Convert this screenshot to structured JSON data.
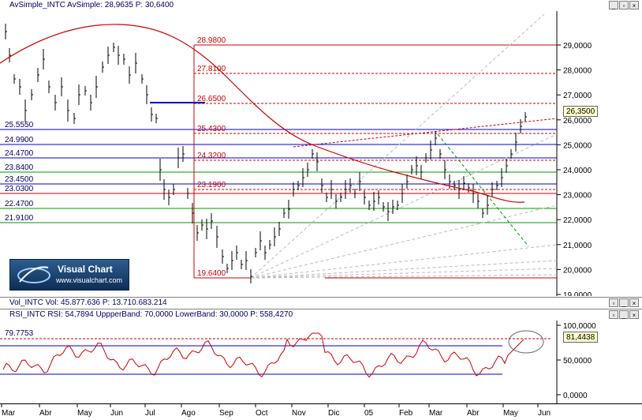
{
  "price_pane": {
    "title": "AvSimple_INTC  AvSimple: 28,9635  P: 30,6400",
    "current_value": "26,3500",
    "y_ticks": [
      "29,0000",
      "28,0000",
      "27,0000",
      "26,0000",
      "25,0000",
      "24,0000",
      "23,0000",
      "22,0000",
      "21,0000",
      "20,0000",
      "19,0000"
    ],
    "levels_left": [
      "25.5550",
      "24.9900",
      "24.4700",
      "23.8400",
      "23.4500",
      "23.0300",
      "22.4700",
      "21.9100"
    ],
    "levels_mid": [
      "28.9800",
      "27.8100",
      "26.6500",
      "25.4300",
      "24.3200",
      "23.1900",
      "19.6400"
    ]
  },
  "volume_pane": {
    "title": "Vol_INTC  Vol: 45.877.636  P: 13.710.683.214"
  },
  "rsi_pane": {
    "title": "RSI_INTC  RSI: 54,7894  UppperBand: 70,0000  LowerBand: 30,0000  P: 558,4270",
    "left_level": "79.7753",
    "current_value": "81,4438",
    "y_ticks": [
      "100,0000",
      "50,0000",
      "0,0000"
    ]
  },
  "x_axis": [
    "Mar",
    "Abr",
    "May",
    "Jun",
    "Jul",
    "Ago",
    "Sep",
    "Oct",
    "Nov",
    "Dic",
    "05",
    "Feb",
    "Mar",
    "Abr",
    "May",
    "Jun"
  ],
  "logo": {
    "title": "Visual Chart",
    "url": "www.visualchart.com"
  },
  "window_buttons": {
    "minimize": "_",
    "restore": "▫",
    "close": "×"
  },
  "colors": {
    "price": "#000000",
    "moving_average": "#cc0000",
    "level_blue": "#0000cc",
    "level_green": "#009900",
    "level_red": "#cc0000",
    "rsi": "#cc0000"
  }
}
